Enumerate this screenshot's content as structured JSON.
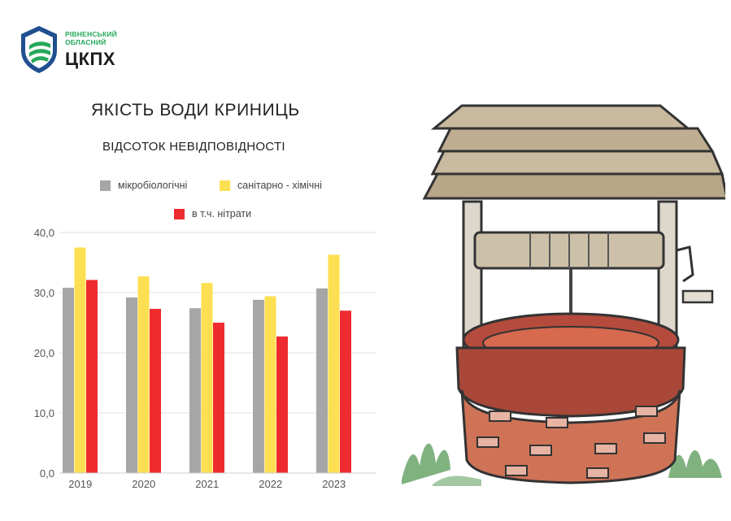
{
  "logo": {
    "line1": "РІВНЕНСЬКИЙ",
    "line2": "ОБЛАСНИЙ",
    "line3": "ЦКПХ"
  },
  "illustration": {
    "icon": "water-well-icon"
  },
  "colors": {
    "microbio": "#a6a6a6",
    "sanitary": "#fddf52",
    "nitrates": "#ee2b2f",
    "logo_blue": "#1f4f8f",
    "logo_green": "#25a85a"
  },
  "chart_data": {
    "type": "bar",
    "title": "ЯКІСТЬ ВОДИ КРИНИЦЬ",
    "subtitle": "ВІДСОТОК НЕВІДПОВІДНОСТІ",
    "xlabel": "",
    "ylabel": "",
    "categories": [
      "2019",
      "2020",
      "2021",
      "2022",
      "2023"
    ],
    "ylim": [
      0,
      40
    ],
    "yticks": [
      "0,0",
      "10,0",
      "20,0",
      "30,0",
      "40,0"
    ],
    "grid": true,
    "legend_position": "top",
    "series": [
      {
        "name": "мікробіологічні",
        "color": "#a6a6a6",
        "values": [
          30.8,
          29.2,
          27.4,
          28.8,
          30.7
        ]
      },
      {
        "name": "санітарно - хімічні",
        "color": "#fddf52",
        "values": [
          37.5,
          32.7,
          31.6,
          29.4,
          36.3
        ]
      },
      {
        "name": "в т.ч. нітрати",
        "color": "#ee2b2f",
        "values": [
          32.1,
          27.3,
          25.0,
          22.7,
          27.0
        ]
      }
    ]
  }
}
